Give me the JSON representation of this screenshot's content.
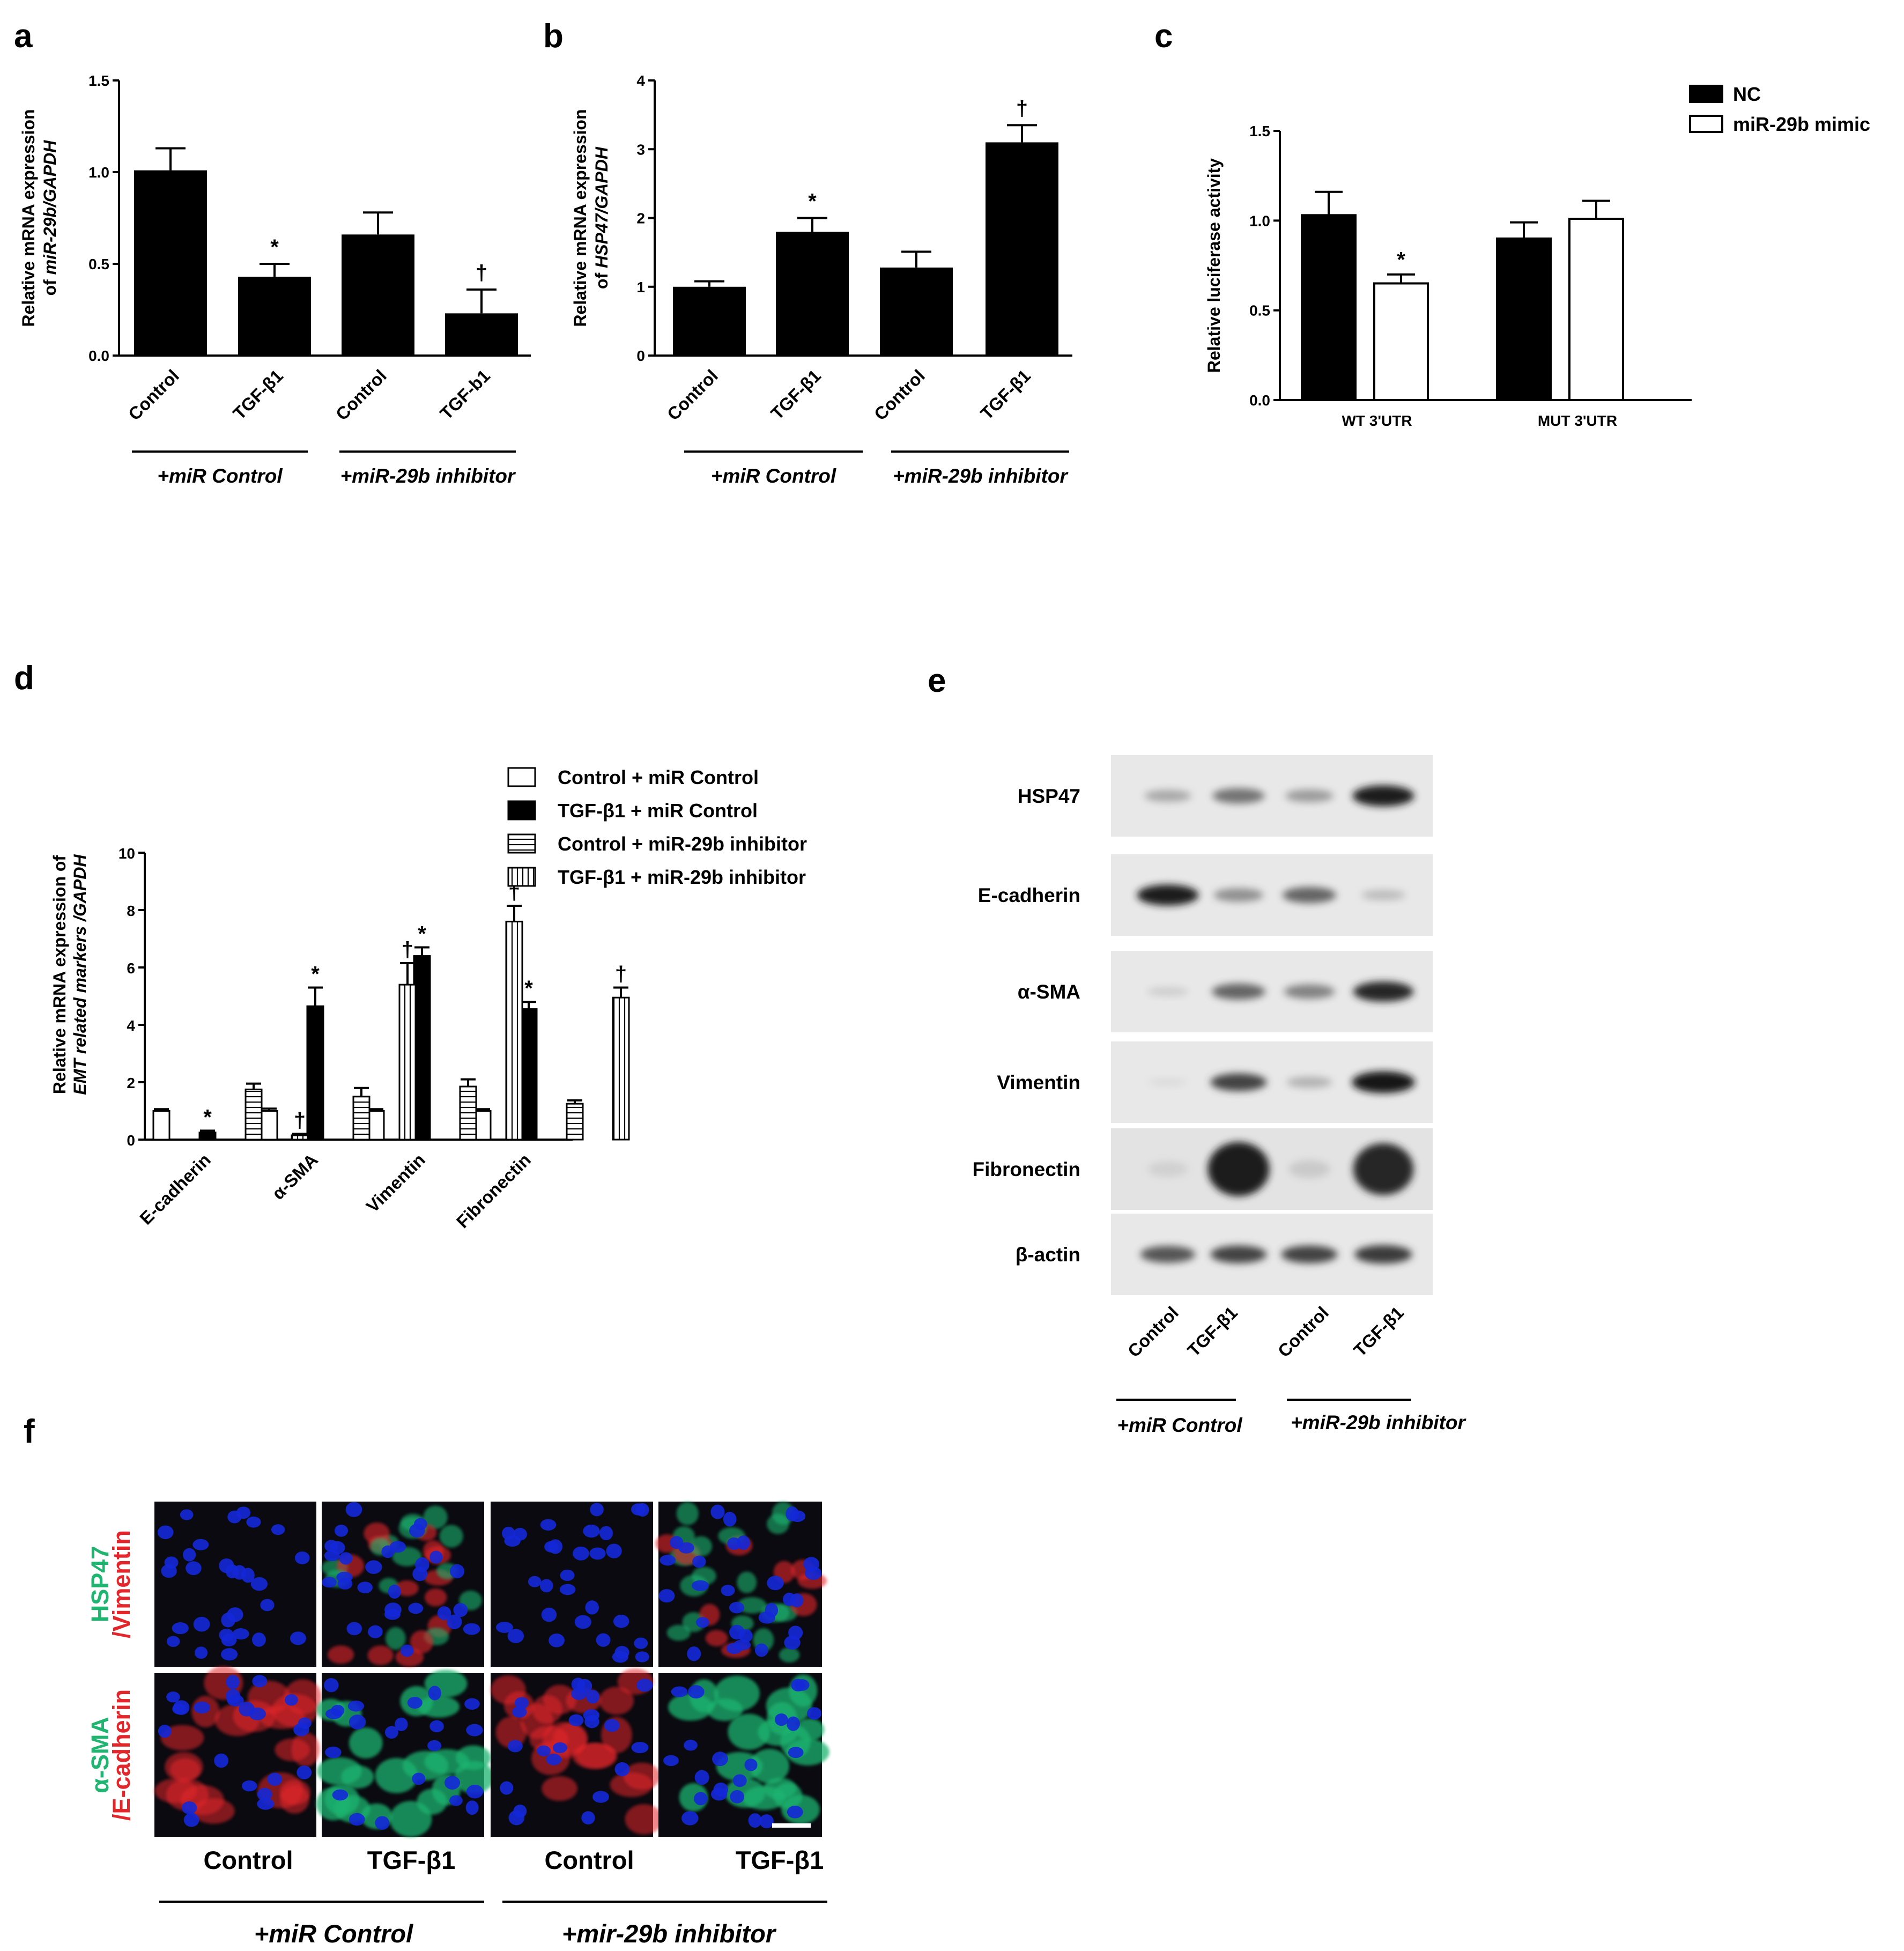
{
  "panel_letters": [
    "a",
    "b",
    "c",
    "d",
    "e",
    "f"
  ],
  "chart_data": [
    {
      "panel": "a",
      "type": "bar",
      "ylabel_line1": "Relative mRNA expression",
      "ylabel_line2_prefix": "of ",
      "ylabel_line2_italic": "miR-29b/GAPDH",
      "categories": [
        "Control",
        "TGF-β1",
        "Control",
        "TGF-b1"
      ],
      "values": [
        1.01,
        0.43,
        0.66,
        0.23
      ],
      "errors": [
        0.12,
        0.07,
        0.12,
        0.13
      ],
      "marks": [
        "",
        "*",
        "",
        "†"
      ],
      "ylim": [
        0,
        1.5
      ],
      "yticks": [
        "0.0",
        "0.5",
        "1.0",
        "1.5"
      ],
      "groups": [
        "+miR Control",
        "+miR-29b inhibitor"
      ]
    },
    {
      "panel": "b",
      "type": "bar",
      "ylabel_line1": "Relative mRNA expression",
      "ylabel_line2_prefix": "of ",
      "ylabel_line2_italic": "HSP47/GAPDH",
      "categories": [
        "Control",
        "TGF-β1",
        "Control",
        "TGF-β1"
      ],
      "values": [
        1.0,
        1.8,
        1.28,
        3.1
      ],
      "errors": [
        0.08,
        0.2,
        0.23,
        0.25
      ],
      "marks": [
        "",
        "*",
        "",
        "†"
      ],
      "ylim": [
        0,
        4
      ],
      "yticks": [
        "0",
        "1",
        "2",
        "3",
        "4"
      ],
      "groups": [
        "+miR Control",
        "+miR-29b inhibitor"
      ]
    },
    {
      "panel": "c",
      "type": "bar",
      "ylabel": "Relative luciferase activity",
      "categories": [
        "WT 3'UTR",
        "MUT 3'UTR"
      ],
      "series": [
        {
          "name": "NC",
          "values": [
            1.03,
            0.9
          ],
          "errors": [
            0.13,
            0.09
          ],
          "marks": [
            "",
            ""
          ]
        },
        {
          "name": "miR-29b mimic",
          "values": [
            0.65,
            1.01
          ],
          "errors": [
            0.05,
            0.1
          ],
          "marks": [
            "*",
            ""
          ]
        }
      ],
      "ylim": [
        0,
        1.5
      ],
      "yticks": [
        "0.0",
        "0.5",
        "1.0",
        "1.5"
      ],
      "legend": "top-right"
    },
    {
      "panel": "d",
      "type": "bar",
      "ylabel_line1": "Relative mRNA expression of",
      "ylabel_line2_italic": "EMT related markers /GAPDH",
      "categories": [
        "E-cadherin",
        "α-SMA",
        "Vimentin",
        "Fibronectin"
      ],
      "series": [
        {
          "name": "Control + miR Control",
          "values": [
            1.0,
            1.0,
            1.0,
            1.0
          ],
          "errors": [
            0.06,
            0.08,
            0.06,
            0.06
          ],
          "marks": [
            "",
            "",
            "",
            ""
          ]
        },
        {
          "name": "TGF-β1 + miR Control",
          "values": [
            0.25,
            4.65,
            6.4,
            4.55
          ],
          "errors": [
            0.06,
            0.65,
            0.3,
            0.25
          ],
          "marks": [
            "*",
            "*",
            "*",
            "*"
          ]
        },
        {
          "name": "Control + miR-29b inhibitor",
          "values": [
            1.75,
            1.5,
            1.85,
            1.25
          ],
          "errors": [
            0.2,
            0.3,
            0.25,
            0.12
          ],
          "marks": [
            "",
            "",
            "",
            ""
          ]
        },
        {
          "name": "TGF-β1 + miR-29b inhibitor",
          "values": [
            0.15,
            5.4,
            7.6,
            4.95
          ],
          "errors": [
            0.05,
            0.75,
            0.55,
            0.35
          ],
          "marks": [
            "†",
            "†",
            "†",
            "†"
          ]
        }
      ],
      "ylim": [
        0,
        10
      ],
      "yticks": [
        "0",
        "2",
        "4",
        "6",
        "8",
        "10"
      ],
      "legend": "top-right"
    }
  ],
  "blot": {
    "rows": [
      "HSP47",
      "E-cadherin",
      "α-SMA",
      "Vimentin",
      "Fibronectin",
      "β-actin"
    ],
    "intensity": [
      [
        0.35,
        0.55,
        0.4,
        0.9
      ],
      [
        0.9,
        0.45,
        0.6,
        0.25
      ],
      [
        0.15,
        0.6,
        0.5,
        0.85
      ],
      [
        0.05,
        0.7,
        0.3,
        0.95
      ],
      [
        0.1,
        0.9,
        0.15,
        0.85
      ],
      [
        0.65,
        0.7,
        0.7,
        0.75
      ]
    ],
    "columns": [
      "Control",
      "TGF-β1",
      "Control",
      "TGF-β1"
    ],
    "groups": [
      "+miR Control",
      "+miR-29b inhibitor"
    ]
  },
  "if_panel": {
    "row_labels": [
      {
        "green": "HSP47",
        "red": "/Vimentin"
      },
      {
        "green": "α-SMA",
        "red": "/E-cadherin"
      }
    ],
    "columns": [
      "Control",
      "TGF-β1",
      "Control",
      "TGF-β1"
    ],
    "groups": [
      "+miR Control",
      "+mir-29b inhibitor"
    ],
    "colors": {
      "green": "#1fb46f",
      "red": "#e3262b",
      "nucleus": "#1428d8",
      "background": "#0a0a10"
    }
  }
}
